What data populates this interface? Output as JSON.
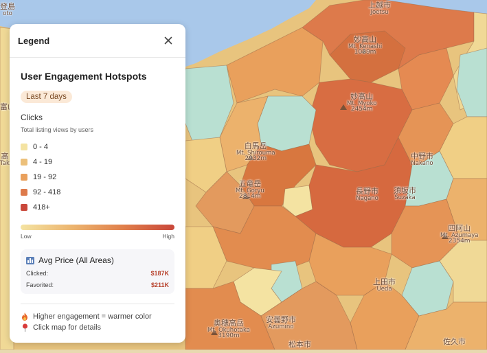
{
  "colors": {
    "bin_0": "#f4e3a2",
    "bin_1": "#ecc07a",
    "bin_2": "#e9a05c",
    "bin_3": "#dd7a4b",
    "bin_4": "#c9473a",
    "water": "#a9c8ea",
    "forest": "#b9e0d2",
    "accent": "#b8442e"
  },
  "legend": {
    "header_title": "Legend",
    "section_title": "User Engagement Hotspots",
    "time_badge": "Last 7 days",
    "metric_title": "Clicks",
    "metric_subtitle": "Total listing views by users",
    "bins": [
      {
        "label": "0 - 4",
        "color": "#f4e3a2"
      },
      {
        "label": "4 - 19",
        "color": "#ecc07a"
      },
      {
        "label": "19 - 92",
        "color": "#e9a05c"
      },
      {
        "label": "92 - 418",
        "color": "#dd7a4b"
      },
      {
        "label": "418+",
        "color": "#c9473a"
      }
    ],
    "gradient_low": "Low",
    "gradient_high": "High",
    "price_card": {
      "title": "Avg Price (All Areas)",
      "rows": [
        {
          "label": "Clicked:",
          "value": "$187K"
        },
        {
          "label": "Favorited:",
          "value": "$211K"
        }
      ]
    },
    "footer": [
      {
        "icon": "fire-icon",
        "text": "Higher engagement = warmer color"
      },
      {
        "icon": "pin-icon",
        "text": "Click map for details"
      }
    ]
  },
  "map_labels": [
    {
      "id": "joetsu",
      "jp": "上越市",
      "en": "Joetsu",
      "elev": ""
    },
    {
      "id": "kenashi",
      "jp": "妙高山",
      "en": "Mt. Kenashi",
      "elev": "1029m"
    },
    {
      "id": "myoko",
      "jp": "妙高山",
      "en": "Mt. Myoko",
      "elev": "2454m"
    },
    {
      "id": "shirouma",
      "jp": "白馬岳",
      "en": "Mt. Shirouma",
      "elev": "2932m"
    },
    {
      "id": "goryu",
      "jp": "五竜岳",
      "en": "Mt. Goryu",
      "elev": "2814m"
    },
    {
      "id": "nagano",
      "jp": "長野市",
      "en": "Nagano",
      "elev": ""
    },
    {
      "id": "nakano",
      "jp": "中野市",
      "en": "Nakano",
      "elev": ""
    },
    {
      "id": "suzaka",
      "jp": "須坂市",
      "en": "Suzaka",
      "elev": ""
    },
    {
      "id": "azumaya",
      "jp": "四阿山",
      "en": "Mt. Azumaya",
      "elev": "2354m"
    },
    {
      "id": "ueda",
      "jp": "上田市",
      "en": "Ueda",
      "elev": ""
    },
    {
      "id": "azumino",
      "jp": "安曇野市",
      "en": "Azumino",
      "elev": ""
    },
    {
      "id": "okuhotaka",
      "jp": "奥穂高岳",
      "en": "Mt. Okuhotaka",
      "elev": "3190m"
    },
    {
      "id": "matsumoto",
      "jp": "松本市",
      "en": "",
      "elev": ""
    },
    {
      "id": "saku",
      "jp": "佐久市",
      "en": "",
      "elev": ""
    },
    {
      "id": "toyama_edge",
      "jp": "富山市",
      "en": "",
      "elev": ""
    },
    {
      "id": "takayama_edge",
      "jp": "高",
      "en": "Tak",
      "elev": ""
    },
    {
      "id": "top_edge",
      "jp": "登島",
      "en": "oto",
      "elev": ""
    }
  ]
}
